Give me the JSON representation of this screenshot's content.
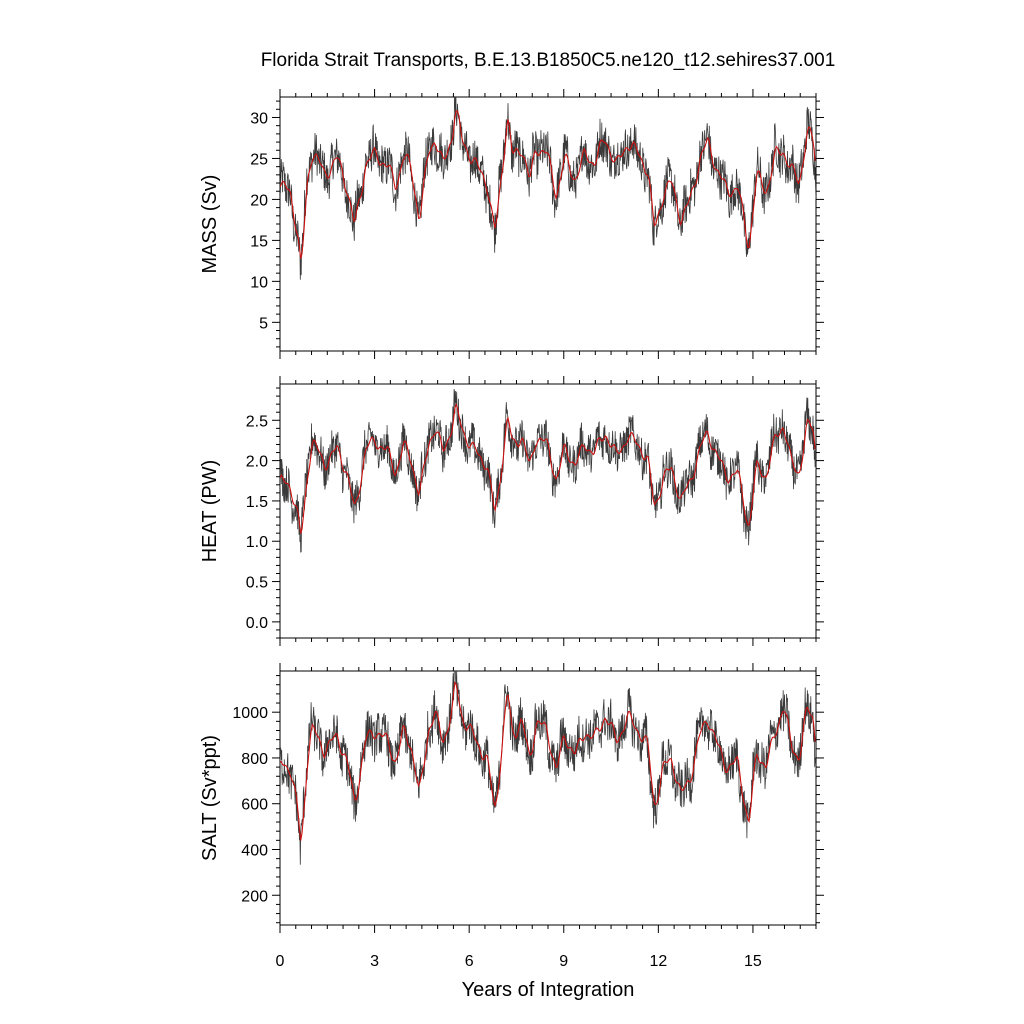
{
  "chart_data": {
    "type": "line",
    "title": "Florida Strait Transports, B.E.13.B1850C5.ne120_t12.sehires37.001",
    "xlabel": "Years of Integration",
    "xlim": [
      0,
      17
    ],
    "x_ticks": [
      "0",
      "3",
      "6",
      "9",
      "12",
      "15"
    ],
    "series_colors": {
      "monthly": "#3a3a3a",
      "smoothed": "#cc1010"
    },
    "panels": [
      {
        "ylabel": "MASS (Sv)",
        "ylim": [
          1.5,
          32.5
        ],
        "y_ticks": [
          "5",
          "10",
          "15",
          "20",
          "25",
          "30"
        ],
        "mean": 23.3,
        "spread": 2.4,
        "samples": [
          [
            0.0,
            21.5
          ],
          [
            0.3,
            21.0
          ],
          [
            0.55,
            15.5
          ],
          [
            0.65,
            11.0
          ],
          [
            0.85,
            22.5
          ],
          [
            1.0,
            26.0
          ],
          [
            1.4,
            23.0
          ],
          [
            1.8,
            25.0
          ],
          [
            2.1,
            21.5
          ],
          [
            2.35,
            16.5
          ],
          [
            2.7,
            24.5
          ],
          [
            3.0,
            25.5
          ],
          [
            3.4,
            24.0
          ],
          [
            3.65,
            21.5
          ],
          [
            3.9,
            25.5
          ],
          [
            4.15,
            23.5
          ],
          [
            4.4,
            17.5
          ],
          [
            4.7,
            26.0
          ],
          [
            4.9,
            27.5
          ],
          [
            5.15,
            24.0
          ],
          [
            5.45,
            28.0
          ],
          [
            5.55,
            31.5
          ],
          [
            5.75,
            27.0
          ],
          [
            6.0,
            25.5
          ],
          [
            6.3,
            23.5
          ],
          [
            6.55,
            22.0
          ],
          [
            6.8,
            15.5
          ],
          [
            7.2,
            30.5
          ],
          [
            7.35,
            25.0
          ],
          [
            7.65,
            26.5
          ],
          [
            7.9,
            22.0
          ],
          [
            8.1,
            26.5
          ],
          [
            8.45,
            25.5
          ],
          [
            8.75,
            20.5
          ],
          [
            9.0,
            25.0
          ],
          [
            9.35,
            22.5
          ],
          [
            9.65,
            25.5
          ],
          [
            9.95,
            24.5
          ],
          [
            10.3,
            27.5
          ],
          [
            10.65,
            24.0
          ],
          [
            11.0,
            27.0
          ],
          [
            11.35,
            25.5
          ],
          [
            11.65,
            23.5
          ],
          [
            11.85,
            16.0
          ],
          [
            12.15,
            21.0
          ],
          [
            12.4,
            22.0
          ],
          [
            12.7,
            17.5
          ],
          [
            13.0,
            20.0
          ],
          [
            13.3,
            25.0
          ],
          [
            13.55,
            27.0
          ],
          [
            13.85,
            23.5
          ],
          [
            14.15,
            21.0
          ],
          [
            14.5,
            21.5
          ],
          [
            14.85,
            14.0
          ],
          [
            15.1,
            23.0
          ],
          [
            15.4,
            21.0
          ],
          [
            15.7,
            25.5
          ],
          [
            15.95,
            26.0
          ],
          [
            16.2,
            23.5
          ],
          [
            16.45,
            22.0
          ],
          [
            16.7,
            28.5
          ],
          [
            16.9,
            27.0
          ],
          [
            17.0,
            22.5
          ]
        ]
      },
      {
        "ylabel": "HEAT (PW)",
        "ylim": [
          -0.2,
          2.95
        ],
        "y_ticks": [
          "0.0",
          "0.5",
          "1.0",
          "1.5",
          "2.0",
          "2.5"
        ],
        "mean": 2.0,
        "spread": 0.22,
        "samples": [
          [
            0.0,
            1.75
          ],
          [
            0.3,
            1.7
          ],
          [
            0.55,
            1.3
          ],
          [
            0.65,
            1.0
          ],
          [
            0.85,
            1.85
          ],
          [
            1.0,
            2.25
          ],
          [
            1.4,
            1.95
          ],
          [
            1.8,
            2.15
          ],
          [
            2.1,
            1.85
          ],
          [
            2.35,
            1.35
          ],
          [
            2.7,
            2.15
          ],
          [
            3.0,
            2.25
          ],
          [
            3.4,
            2.1
          ],
          [
            3.65,
            1.85
          ],
          [
            3.9,
            2.2
          ],
          [
            4.15,
            2.0
          ],
          [
            4.4,
            1.55
          ],
          [
            4.7,
            2.25
          ],
          [
            4.9,
            2.4
          ],
          [
            5.15,
            2.1
          ],
          [
            5.45,
            2.45
          ],
          [
            5.55,
            2.65
          ],
          [
            5.75,
            2.4
          ],
          [
            6.0,
            2.2
          ],
          [
            6.3,
            2.05
          ],
          [
            6.55,
            1.95
          ],
          [
            6.8,
            1.3
          ],
          [
            7.2,
            2.55
          ],
          [
            7.35,
            2.2
          ],
          [
            7.65,
            2.3
          ],
          [
            7.9,
            1.9
          ],
          [
            8.1,
            2.3
          ],
          [
            8.45,
            2.2
          ],
          [
            8.75,
            1.75
          ],
          [
            9.0,
            2.15
          ],
          [
            9.35,
            1.95
          ],
          [
            9.65,
            2.2
          ],
          [
            9.95,
            2.1
          ],
          [
            10.3,
            2.35
          ],
          [
            10.65,
            2.05
          ],
          [
            11.0,
            2.3
          ],
          [
            11.35,
            2.2
          ],
          [
            11.65,
            2.0
          ],
          [
            11.85,
            1.4
          ],
          [
            12.15,
            1.8
          ],
          [
            12.4,
            1.9
          ],
          [
            12.7,
            1.5
          ],
          [
            13.0,
            1.75
          ],
          [
            13.3,
            2.15
          ],
          [
            13.55,
            2.35
          ],
          [
            13.85,
            2.05
          ],
          [
            14.15,
            1.8
          ],
          [
            14.5,
            1.85
          ],
          [
            14.85,
            1.15
          ],
          [
            15.1,
            1.95
          ],
          [
            15.4,
            1.8
          ],
          [
            15.7,
            2.3
          ],
          [
            15.95,
            2.45
          ],
          [
            16.2,
            1.95
          ],
          [
            16.45,
            1.85
          ],
          [
            16.7,
            2.45
          ],
          [
            16.9,
            2.4
          ],
          [
            17.0,
            1.9
          ]
        ]
      },
      {
        "ylabel": "SALT (Sv*ppt)",
        "ylim": [
          70,
          1180
        ],
        "y_ticks": [
          "200",
          "400",
          "600",
          "800",
          "1000"
        ],
        "mean": 830,
        "spread": 85,
        "samples": [
          [
            0.0,
            780
          ],
          [
            0.3,
            760
          ],
          [
            0.55,
            560
          ],
          [
            0.65,
            400
          ],
          [
            0.85,
            810
          ],
          [
            1.0,
            930
          ],
          [
            1.4,
            830
          ],
          [
            1.8,
            900
          ],
          [
            2.1,
            780
          ],
          [
            2.35,
            600
          ],
          [
            2.7,
            880
          ],
          [
            3.0,
            920
          ],
          [
            3.4,
            870
          ],
          [
            3.65,
            780
          ],
          [
            3.9,
            920
          ],
          [
            4.15,
            850
          ],
          [
            4.4,
            630
          ],
          [
            4.7,
            940
          ],
          [
            4.9,
            990
          ],
          [
            5.15,
            870
          ],
          [
            5.45,
            1010
          ],
          [
            5.55,
            1130
          ],
          [
            5.75,
            980
          ],
          [
            6.0,
            920
          ],
          [
            6.3,
            850
          ],
          [
            6.55,
            790
          ],
          [
            6.8,
            560
          ],
          [
            7.2,
            1100
          ],
          [
            7.35,
            900
          ],
          [
            7.65,
            960
          ],
          [
            7.9,
            790
          ],
          [
            8.1,
            960
          ],
          [
            8.45,
            920
          ],
          [
            8.75,
            740
          ],
          [
            9.0,
            900
          ],
          [
            9.35,
            810
          ],
          [
            9.65,
            920
          ],
          [
            9.95,
            880
          ],
          [
            10.3,
            990
          ],
          [
            10.65,
            870
          ],
          [
            11.0,
            980
          ],
          [
            11.35,
            920
          ],
          [
            11.65,
            850
          ],
          [
            11.85,
            580
          ],
          [
            12.15,
            760
          ],
          [
            12.4,
            800
          ],
          [
            12.7,
            630
          ],
          [
            13.0,
            720
          ],
          [
            13.3,
            900
          ],
          [
            13.55,
            980
          ],
          [
            13.85,
            850
          ],
          [
            14.15,
            760
          ],
          [
            14.5,
            780
          ],
          [
            14.85,
            500
          ],
          [
            15.1,
            830
          ],
          [
            15.4,
            760
          ],
          [
            15.7,
            920
          ],
          [
            15.95,
            1030
          ],
          [
            16.2,
            850
          ],
          [
            16.45,
            800
          ],
          [
            16.7,
            1020
          ],
          [
            16.9,
            980
          ],
          [
            17.0,
            800
          ]
        ]
      }
    ]
  }
}
